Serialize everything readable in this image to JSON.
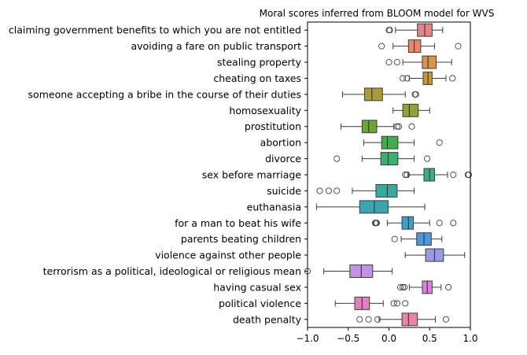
{
  "chart_data": {
    "type": "boxplot",
    "orientation": "horizontal",
    "title": "Moral scores inferred from BLOOM model for WVS",
    "xlabel": "",
    "ylabel": "",
    "xlim": [
      -1.0,
      1.0
    ],
    "xticks": [
      -1.0,
      -0.5,
      0.0,
      0.5,
      1.0
    ],
    "xtick_labels": [
      "−1.0",
      "−0.5",
      "0.0",
      "0.5",
      "1.0"
    ],
    "grid": false,
    "categories": [
      {
        "label": "claiming government benefits to which you are not entitled",
        "color": "#e8828a",
        "whisker_low": 0.08,
        "q1": 0.35,
        "median": 0.44,
        "q3": 0.53,
        "whisker_high": 0.66,
        "outliers": [
          0.0,
          0.01
        ]
      },
      {
        "label": "avoiding a fare on public transport",
        "color": "#e6896a",
        "whisker_low": 0.05,
        "q1": 0.24,
        "median": 0.31,
        "q3": 0.39,
        "whisker_high": 0.56,
        "outliers": [
          -0.09,
          0.85
        ]
      },
      {
        "label": "stealing property",
        "color": "#d9944a",
        "whisker_low": 0.17,
        "q1": 0.41,
        "median": 0.48,
        "q3": 0.58,
        "whisker_high": 0.77,
        "outliers": [
          0.0,
          0.1
        ]
      },
      {
        "label": "cheating on taxes",
        "color": "#c89a37",
        "whisker_low": 0.25,
        "q1": 0.42,
        "median": 0.48,
        "q3": 0.53,
        "whisker_high": 0.7,
        "outliers": [
          0.17,
          0.22,
          0.78
        ]
      },
      {
        "label": "someone accepting a bribe in the course of their duties",
        "color": "#a79b3a",
        "whisker_low": -0.57,
        "q1": -0.3,
        "median": -0.21,
        "q3": -0.08,
        "whisker_high": 0.2,
        "outliers": [
          0.32,
          0.33
        ]
      },
      {
        "label": "homosexuality",
        "color": "#8ea236",
        "whisker_low": 0.05,
        "q1": 0.17,
        "median": 0.25,
        "q3": 0.36,
        "whisker_high": 0.5,
        "outliers": []
      },
      {
        "label": "prostitution",
        "color": "#6aa636",
        "whisker_low": -0.59,
        "q1": -0.33,
        "median": -0.25,
        "q3": -0.15,
        "whisker_high": 0.06,
        "outliers": [
          0.1,
          0.12,
          0.28
        ]
      },
      {
        "label": "abortion",
        "color": "#3fae48",
        "whisker_low": -0.31,
        "q1": -0.09,
        "median": -0.02,
        "q3": 0.11,
        "whisker_high": 0.31,
        "outliers": [
          0.62
        ]
      },
      {
        "label": "divorce",
        "color": "#3caf72",
        "whisker_low": -0.33,
        "q1": -0.1,
        "median": -0.01,
        "q3": 0.11,
        "whisker_high": 0.31,
        "outliers": [
          -0.64,
          0.47
        ]
      },
      {
        "label": "sex before marriage",
        "color": "#39ad8c",
        "whisker_low": 0.24,
        "q1": 0.43,
        "median": 0.5,
        "q3": 0.56,
        "whisker_high": 0.72,
        "outliers": [
          0.2,
          0.22,
          0.79,
          0.97,
          0.98
        ]
      },
      {
        "label": "suicide",
        "color": "#38a99d",
        "whisker_low": -0.45,
        "q1": -0.16,
        "median": -0.02,
        "q3": 0.1,
        "whisker_high": 0.31,
        "outliers": [
          -0.85,
          -0.74,
          -0.64
        ]
      },
      {
        "label": "euthanasia",
        "color": "#3aa4b0",
        "whisker_low": -0.89,
        "q1": -0.36,
        "median": -0.18,
        "q3": -0.01,
        "whisker_high": 0.44,
        "outliers": []
      },
      {
        "label": "for a man to beat his wife",
        "color": "#3e9ec7",
        "whisker_low": -0.02,
        "q1": 0.16,
        "median": 0.24,
        "q3": 0.3,
        "whisker_high": 0.5,
        "outliers": [
          -0.15,
          -0.16,
          -0.17,
          0.62,
          0.79
        ]
      },
      {
        "label": "parents beating children",
        "color": "#4e98d9",
        "whisker_low": 0.15,
        "q1": 0.34,
        "median": 0.43,
        "q3": 0.52,
        "whisker_high": 0.65,
        "outliers": [
          0.07
        ]
      },
      {
        "label": "violence against other people",
        "color": "#9a9ae6",
        "whisker_low": 0.2,
        "q1": 0.45,
        "median": 0.56,
        "q3": 0.67,
        "whisker_high": 0.93,
        "outliers": []
      },
      {
        "label": "terrorism as a political, ideological or religious mean",
        "color": "#c491e3",
        "whisker_low": -0.8,
        "q1": -0.48,
        "median": -0.34,
        "q3": -0.2,
        "whisker_high": 0.04,
        "outliers": [
          -1.0
        ]
      },
      {
        "label": "having casual sex",
        "color": "#dd82d8",
        "whisker_low": 0.25,
        "q1": 0.41,
        "median": 0.47,
        "q3": 0.53,
        "whisker_high": 0.64,
        "outliers": [
          0.14,
          0.17,
          0.19,
          0.73
        ]
      },
      {
        "label": "political violence",
        "color": "#e57fbf",
        "whisker_low": -0.66,
        "q1": -0.42,
        "median": -0.33,
        "q3": -0.24,
        "whisker_high": -0.07,
        "outliers": [
          0.06,
          0.1,
          0.2
        ]
      },
      {
        "label": "death penalty",
        "color": "#ea84a6",
        "whisker_low": -0.12,
        "q1": 0.16,
        "median": 0.24,
        "q3": 0.35,
        "whisker_high": 0.57,
        "outliers": [
          -0.36,
          -0.25,
          -0.14,
          0.7
        ]
      }
    ]
  }
}
